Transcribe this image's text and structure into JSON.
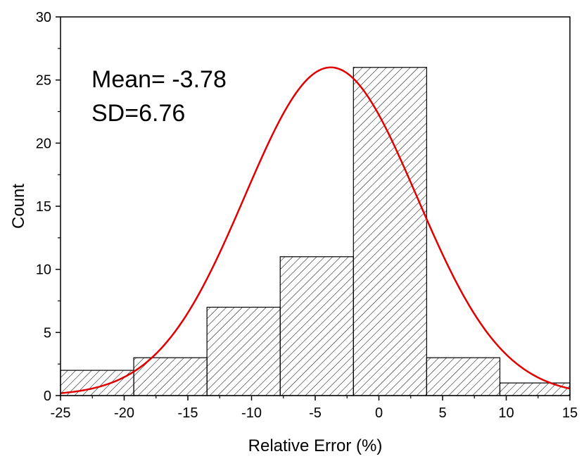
{
  "chart_data": {
    "type": "bar",
    "bins": [
      {
        "x0": -25.0,
        "x1": -19.25,
        "count": 2
      },
      {
        "x0": -19.25,
        "x1": -13.5,
        "count": 3
      },
      {
        "x0": -13.5,
        "x1": -7.75,
        "count": 7
      },
      {
        "x0": -7.75,
        "x1": -2.0,
        "count": 11
      },
      {
        "x0": -2.0,
        "x1": 3.75,
        "count": 26
      },
      {
        "x0": 3.75,
        "x1": 9.5,
        "count": 3
      },
      {
        "x0": 9.5,
        "x1": 15.25,
        "count": 1
      }
    ],
    "fit_curve": {
      "type": "normal",
      "mean": -3.78,
      "sd": 6.76,
      "peak": 26
    },
    "xlabel": "Relative Error (%)",
    "ylabel": "Count",
    "xlim": [
      -25,
      15
    ],
    "ylim": [
      0,
      30
    ],
    "xticks": [
      -25,
      -20,
      -15,
      -10,
      -5,
      0,
      5,
      10,
      15
    ],
    "yticks": [
      0,
      5,
      10,
      15,
      20,
      25,
      30
    ],
    "annotations": [
      "Mean= -3.78",
      "SD=6.76"
    ],
    "bar_fill": "hatched",
    "curve_color": "#e00000",
    "bar_edge_color": "#000000",
    "grid": false
  }
}
